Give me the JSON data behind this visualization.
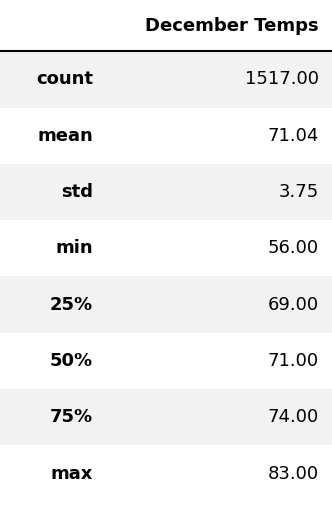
{
  "column_header": "December Temps",
  "rows": [
    {
      "label": "count",
      "value": "1517.00"
    },
    {
      "label": "mean",
      "value": "71.04"
    },
    {
      "label": "std",
      "value": "3.75"
    },
    {
      "label": "min",
      "value": "56.00"
    },
    {
      "label": "25%",
      "value": "69.00"
    },
    {
      "label": "50%",
      "value": "71.00"
    },
    {
      "label": "75%",
      "value": "74.00"
    },
    {
      "label": "max",
      "value": "83.00"
    }
  ],
  "bg_color_even": "#f2f2f2",
  "bg_color_odd": "#ffffff",
  "header_bg": "#ffffff",
  "text_color": "#000000",
  "header_line_color": "#000000",
  "font_size": 13,
  "header_font_size": 13,
  "fig_width": 3.32,
  "fig_height": 5.12
}
